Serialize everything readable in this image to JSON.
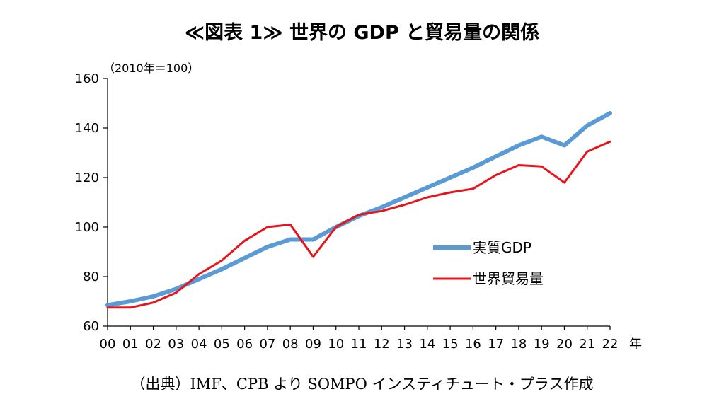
{
  "chart_data": {
    "type": "line",
    "title": "≪図表 1≫ 世界の GDP と貿易量の関係",
    "unit_note": "（2010年＝100）",
    "xlabel": "年",
    "ylabel": "",
    "ylim": [
      60,
      160
    ],
    "y_ticks": [
      "60",
      "80",
      "100",
      "120",
      "140",
      "160"
    ],
    "categories": [
      "00",
      "01",
      "02",
      "03",
      "04",
      "05",
      "06",
      "07",
      "08",
      "09",
      "10",
      "11",
      "12",
      "13",
      "14",
      "15",
      "16",
      "17",
      "18",
      "19",
      "20",
      "21",
      "22"
    ],
    "legend_position": "right-center",
    "grid": false,
    "series": [
      {
        "name": "実質GDP",
        "color": "#5B9BD5",
        "values": [
          68.5,
          70,
          72,
          75,
          79,
          83,
          87.5,
          92,
          95,
          95,
          100,
          104.5,
          108,
          112,
          116,
          120,
          124,
          128.5,
          133,
          136.5,
          133,
          141,
          146
        ]
      },
      {
        "name": "世界貿易量",
        "color": "#E8141B",
        "values": [
          67.5,
          67.5,
          69.5,
          73.5,
          81,
          86.5,
          94.5,
          100,
          101,
          88,
          100,
          105,
          106.5,
          109,
          112,
          114,
          115.5,
          121,
          125,
          124.5,
          118,
          130.5,
          134.5
        ]
      }
    ]
  },
  "source_note": "（出典）IMF、CPB より SOMPO インスティチュート・プラス作成"
}
